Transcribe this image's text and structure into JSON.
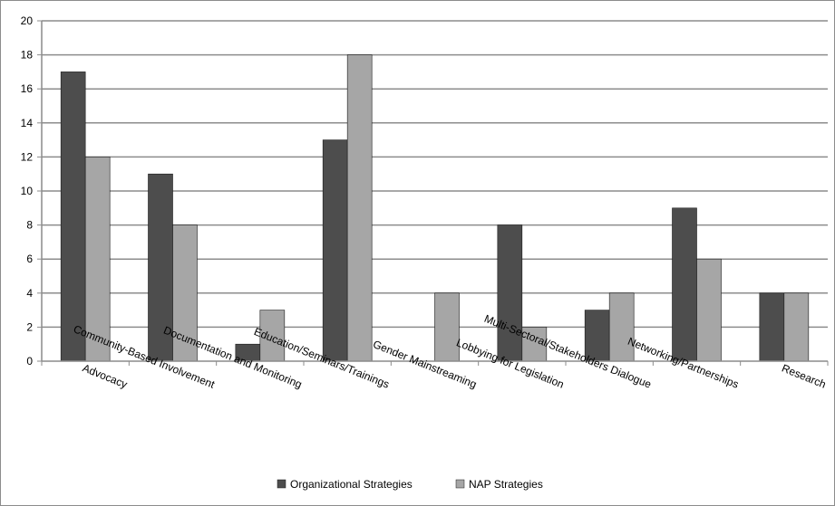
{
  "chart_data": {
    "type": "bar",
    "categories": [
      "Advocacy",
      "Community-Based Involvement",
      "Documentation and Monitoring",
      "Education/Seminars/Trainings",
      "Gender Mainstreaming",
      "Lobbying for Legislation",
      "Multi-Sectoral/Stakeholders Dialogue",
      "Networking/Partnerships",
      "Research"
    ],
    "series": [
      {
        "name": "Organizational Strategies",
        "values": [
          17,
          11,
          1,
          13,
          0,
          8,
          3,
          9,
          4
        ],
        "color": "#4d4d4d"
      },
      {
        "name": "NAP Strategies",
        "values": [
          12,
          8,
          3,
          18,
          4,
          2,
          4,
          6,
          4
        ],
        "color": "#a6a6a6"
      }
    ],
    "ylim": [
      0,
      20
    ],
    "yticks": [
      "0",
      "2",
      "4",
      "6",
      "8",
      "10",
      "12",
      "14",
      "16",
      "18",
      "20"
    ],
    "grid": true,
    "legend": "bottom"
  }
}
